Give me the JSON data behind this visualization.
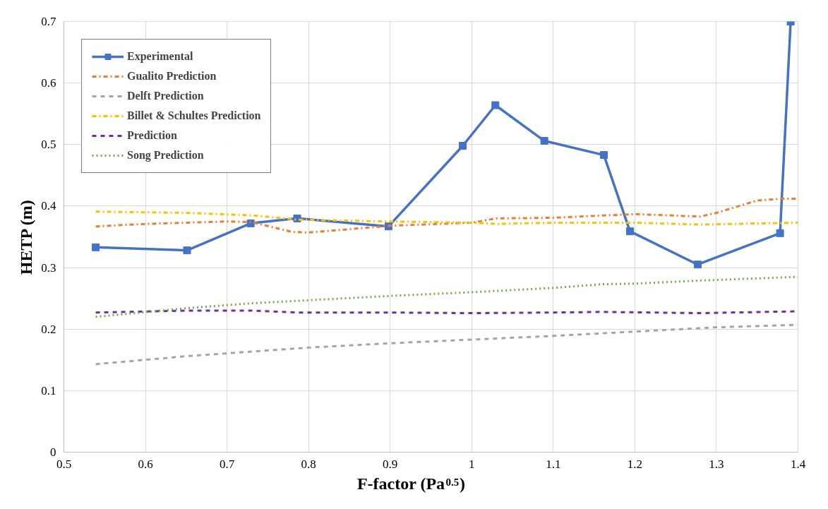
{
  "chart_data": {
    "type": "line",
    "xlabel": "F-factor (Pa$^{0.5}$)",
    "ylabel": "HETP (m)",
    "xlim": [
      0.5,
      1.4
    ],
    "xticks": [
      0.5,
      0.6,
      0.7,
      0.8,
      0.9,
      1,
      1.1,
      1.2,
      1.3,
      1.4
    ],
    "ylim": [
      0,
      0.7
    ],
    "yticks": [
      0,
      0.1,
      0.2,
      0.3,
      0.4,
      0.5,
      0.6,
      0.7
    ],
    "grid": true,
    "legend": "top left",
    "series": [
      {
        "name": "Experimental",
        "color": "#4472c4",
        "marker": "square",
        "line_style": "solid",
        "x": [
          0.539,
          0.651,
          0.729,
          0.786,
          0.898,
          0.989,
          1.029,
          1.089,
          1.162,
          1.194,
          1.277,
          1.378,
          1.391
        ],
        "values": [
          0.333,
          0.328,
          0.372,
          0.38,
          0.367,
          0.498,
          0.564,
          0.506,
          0.483,
          0.359,
          0.305,
          0.356,
          0.7
        ]
      },
      {
        "name": "Gualito Prediction",
        "color": "#ed7d31",
        "marker": "none",
        "line_style": "dashdot",
        "x": [
          0.539,
          0.6,
          0.7,
          0.73,
          0.78,
          0.8,
          0.9,
          1.0,
          1.03,
          1.1,
          1.2,
          1.28,
          1.3,
          1.35,
          1.38,
          1.4
        ],
        "values": [
          0.367,
          0.371,
          0.375,
          0.374,
          0.358,
          0.357,
          0.368,
          0.373,
          0.38,
          0.381,
          0.387,
          0.383,
          0.389,
          0.409,
          0.412,
          0.412
        ]
      },
      {
        "name": "Delft Prediction",
        "color": "#a5a5a5",
        "marker": "none",
        "line_style": "dashed",
        "x": [
          0.539,
          0.65,
          0.8,
          0.9,
          1.0,
          1.1,
          1.2,
          1.3,
          1.4
        ],
        "values": [
          0.143,
          0.156,
          0.17,
          0.177,
          0.183,
          0.189,
          0.196,
          0.203,
          0.207
        ]
      },
      {
        "name": "Billet & Schultes Prediction",
        "color": "#ffc000",
        "marker": "none",
        "line_style": "dashdot",
        "x": [
          0.539,
          0.65,
          0.73,
          0.786,
          0.9,
          1.0,
          1.03,
          1.1,
          1.2,
          1.28,
          1.4
        ],
        "values": [
          0.391,
          0.389,
          0.385,
          0.378,
          0.375,
          0.373,
          0.371,
          0.373,
          0.373,
          0.37,
          0.373
        ]
      },
      {
        "name": "Prediction",
        "color": "#7030a0",
        "marker": "none",
        "line_style": "dashed",
        "x": [
          0.539,
          0.65,
          0.73,
          0.786,
          0.9,
          1.0,
          1.1,
          1.16,
          1.28,
          1.4
        ],
        "values": [
          0.227,
          0.23,
          0.23,
          0.227,
          0.227,
          0.226,
          0.227,
          0.228,
          0.226,
          0.229
        ]
      },
      {
        "name": "Song Prediction",
        "color": "#70ad47",
        "marker": "none",
        "line_style": "dotted",
        "x": [
          0.539,
          0.65,
          0.73,
          0.786,
          0.9,
          1.0,
          1.1,
          1.16,
          1.2,
          1.28,
          1.4
        ],
        "values": [
          0.22,
          0.234,
          0.242,
          0.246,
          0.254,
          0.26,
          0.267,
          0.273,
          0.274,
          0.279,
          0.285
        ]
      }
    ]
  }
}
